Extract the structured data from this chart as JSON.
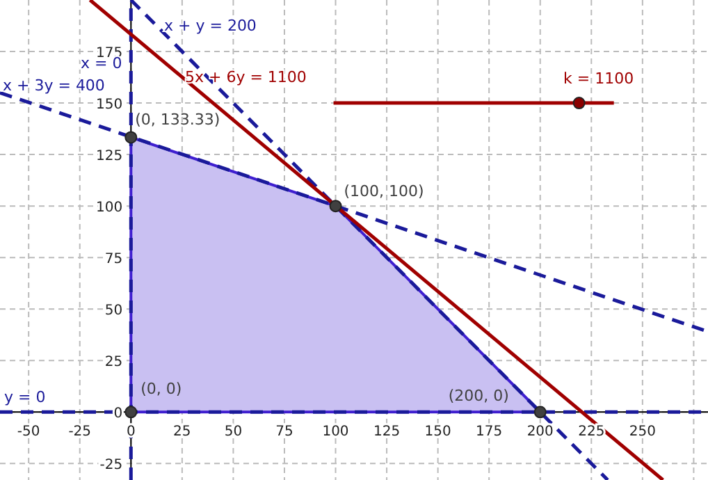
{
  "chart_data": {
    "type": "line",
    "xlim": [
      -64,
      282
    ],
    "ylim": [
      -33,
      200
    ],
    "xticks": [
      -50,
      -25,
      0,
      25,
      50,
      75,
      100,
      125,
      150,
      175,
      200,
      225,
      250,
      {
        "value": 275,
        "label": null
      }
    ],
    "yticks": [
      -25,
      0,
      25,
      50,
      75,
      100,
      125,
      150,
      175
    ],
    "grid": true,
    "series": [
      {
        "type": "area",
        "color": "#3f1fd0",
        "x": [
          0,
          0,
          100,
          200
        ],
        "values": [
          0,
          133.33,
          100,
          0
        ]
      },
      {
        "name": "x + 3y = 400",
        "color": "#1a1a9a",
        "line_style": "dashed",
        "x": [
          -64,
          282
        ],
        "values": [
          155,
          39
        ]
      },
      {
        "name": "x + y = 200",
        "color": "#1a1a9a",
        "line_style": "dashed",
        "x": [
          0,
          233
        ],
        "values": [
          200,
          -33
        ]
      },
      {
        "name": "x = 0",
        "color": "#1a1a9a",
        "line_style": "dashed",
        "x": [
          0,
          0
        ],
        "values": [
          -33,
          200
        ]
      },
      {
        "name": "y = 0",
        "color": "#1a1a9a",
        "line_style": "dashed",
        "x": [
          -64,
          282
        ],
        "values": [
          0,
          0
        ]
      },
      {
        "name": "5x + 6y = 1100",
        "color": "#a00000",
        "line_style": "solid",
        "x": [
          -20,
          260
        ],
        "values": [
          200,
          -33
        ]
      },
      {
        "name": "k = 1100",
        "color": "#a00000",
        "line_style": "solid",
        "x": [
          99,
          236
        ],
        "values": [
          150,
          150
        ]
      },
      {
        "type": "scatter",
        "color": "#8b0000",
        "marker": "circle",
        "x": [
          219
        ],
        "values": [
          150
        ]
      },
      {
        "type": "scatter",
        "color": "#404040",
        "marker": "circle",
        "x": [
          0,
          0,
          100,
          200
        ],
        "values": [
          0,
          133.33,
          100,
          0
        ]
      }
    ],
    "annotations": [
      {
        "text": "(0, 133.33)",
        "x": 0,
        "y": 133.33
      },
      {
        "text": "(100, 100)",
        "x": 100,
        "y": 100
      },
      {
        "text": "(0, 0)",
        "x": 0,
        "y": 0
      },
      {
        "text": "(200, 0)",
        "x": 200,
        "y": 0
      }
    ]
  }
}
